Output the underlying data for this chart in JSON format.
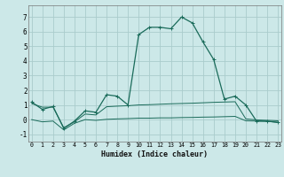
{
  "xlabel": "Humidex (Indice chaleur)",
  "x_main": [
    0,
    1,
    2,
    3,
    4,
    5,
    6,
    7,
    8,
    9,
    10,
    11,
    12,
    13,
    14,
    15,
    16,
    17,
    18,
    19,
    20,
    21,
    22,
    23
  ],
  "y_main": [
    1.2,
    0.7,
    0.9,
    -0.6,
    -0.1,
    0.6,
    0.5,
    1.7,
    1.6,
    1.0,
    5.8,
    6.3,
    6.3,
    6.2,
    7.0,
    6.6,
    5.3,
    4.1,
    1.4,
    1.6,
    1.0,
    -0.1,
    -0.1,
    -0.2
  ],
  "x_flat1": [
    0,
    1,
    2,
    3,
    4,
    5,
    6,
    7,
    8,
    9,
    10,
    11,
    12,
    13,
    14,
    15,
    16,
    17,
    18,
    19,
    20,
    21,
    22,
    23
  ],
  "y_flat1": [
    1.1,
    0.85,
    0.85,
    -0.55,
    -0.15,
    0.38,
    0.32,
    0.88,
    0.92,
    0.95,
    1.0,
    1.02,
    1.05,
    1.08,
    1.1,
    1.12,
    1.15,
    1.18,
    1.2,
    1.22,
    0.05,
    -0.02,
    -0.05,
    -0.08
  ],
  "x_flat2": [
    0,
    1,
    2,
    3,
    4,
    5,
    6,
    7,
    8,
    9,
    10,
    11,
    12,
    13,
    14,
    15,
    16,
    17,
    18,
    19,
    20,
    21,
    22,
    23
  ],
  "y_flat2": [
    0.0,
    -0.15,
    -0.1,
    -0.7,
    -0.25,
    0.0,
    -0.05,
    0.02,
    0.05,
    0.07,
    0.1,
    0.1,
    0.12,
    0.12,
    0.14,
    0.15,
    0.17,
    0.18,
    0.2,
    0.22,
    -0.08,
    -0.1,
    -0.12,
    -0.18
  ],
  "line_color": "#1a6b5a",
  "bg_color": "#cce8e8",
  "grid_color": "#aacccc",
  "ylim": [
    -1.5,
    7.8
  ],
  "xlim": [
    -0.3,
    23.3
  ],
  "yticks": [
    -1,
    0,
    1,
    2,
    3,
    4,
    5,
    6,
    7
  ],
  "xtick_labels": [
    "0",
    "1",
    "2",
    "3",
    "4",
    "5",
    "6",
    "7",
    "8",
    "9",
    "10",
    "11",
    "12",
    "13",
    "14",
    "15",
    "16",
    "17",
    "18",
    "19",
    "20",
    "21",
    "22",
    "23"
  ]
}
